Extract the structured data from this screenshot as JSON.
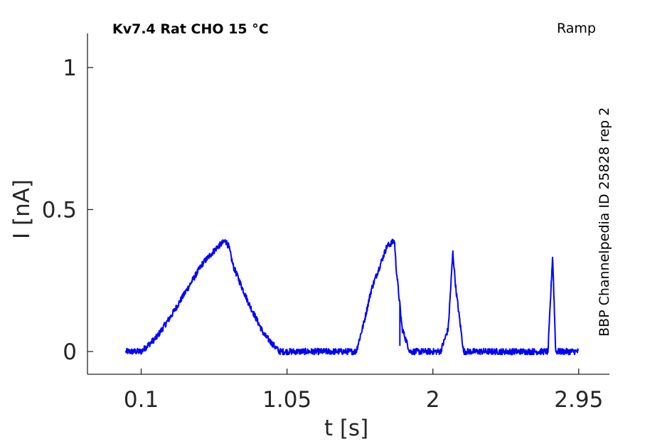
{
  "chart_data": {
    "type": "line",
    "title_left": "Kv7.4  Rat  CHO  15 °C",
    "title_right": "Ramp",
    "side_label": "BBP Channelpedia ID 25828 rep 2",
    "xlabel": "t [s]",
    "ylabel": "I [nA]",
    "xlim": [
      -0.25,
      3.15
    ],
    "ylim": [
      -0.08,
      1.12
    ],
    "x_ticks": [
      0.1,
      1.05,
      2,
      2.95
    ],
    "x_tick_labels": [
      "0.1",
      "1.05",
      "2",
      "2.95"
    ],
    "y_ticks": [
      0,
      0.5,
      1
    ],
    "y_tick_labels": [
      "0",
      "0.5",
      "1"
    ],
    "grid": false,
    "line_color": "#0000ff",
    "series": [
      {
        "x": [
          0.0,
          0.05,
          0.1,
          0.2,
          0.3,
          0.4,
          0.5,
          0.6,
          0.65,
          0.67,
          0.7,
          0.8,
          0.9,
          1.0,
          1.1,
          1.2,
          1.3,
          1.4,
          1.5,
          1.55,
          1.6,
          1.7,
          1.75,
          1.76,
          1.8,
          1.85,
          1.9,
          1.95,
          2.0,
          2.05,
          2.1,
          2.13,
          2.15,
          2.2,
          2.3,
          2.4,
          2.5,
          2.6,
          2.7,
          2.75,
          2.78,
          2.8,
          2.9,
          2.95
        ],
        "y": [
          0.0,
          0.0,
          0.0,
          0.05,
          0.13,
          0.22,
          0.31,
          0.37,
          0.39,
          0.37,
          0.3,
          0.17,
          0.06,
          0.0,
          0.0,
          0.0,
          0.0,
          0.0,
          0.0,
          0.1,
          0.22,
          0.37,
          0.39,
          0.3,
          0.08,
          0.0,
          0.0,
          0.0,
          0.0,
          0.0,
          0.08,
          0.35,
          0.22,
          0.0,
          0.0,
          0.0,
          0.0,
          0.0,
          0.0,
          0.0,
          0.34,
          0.0,
          0.0,
          0.0
        ]
      }
    ]
  }
}
